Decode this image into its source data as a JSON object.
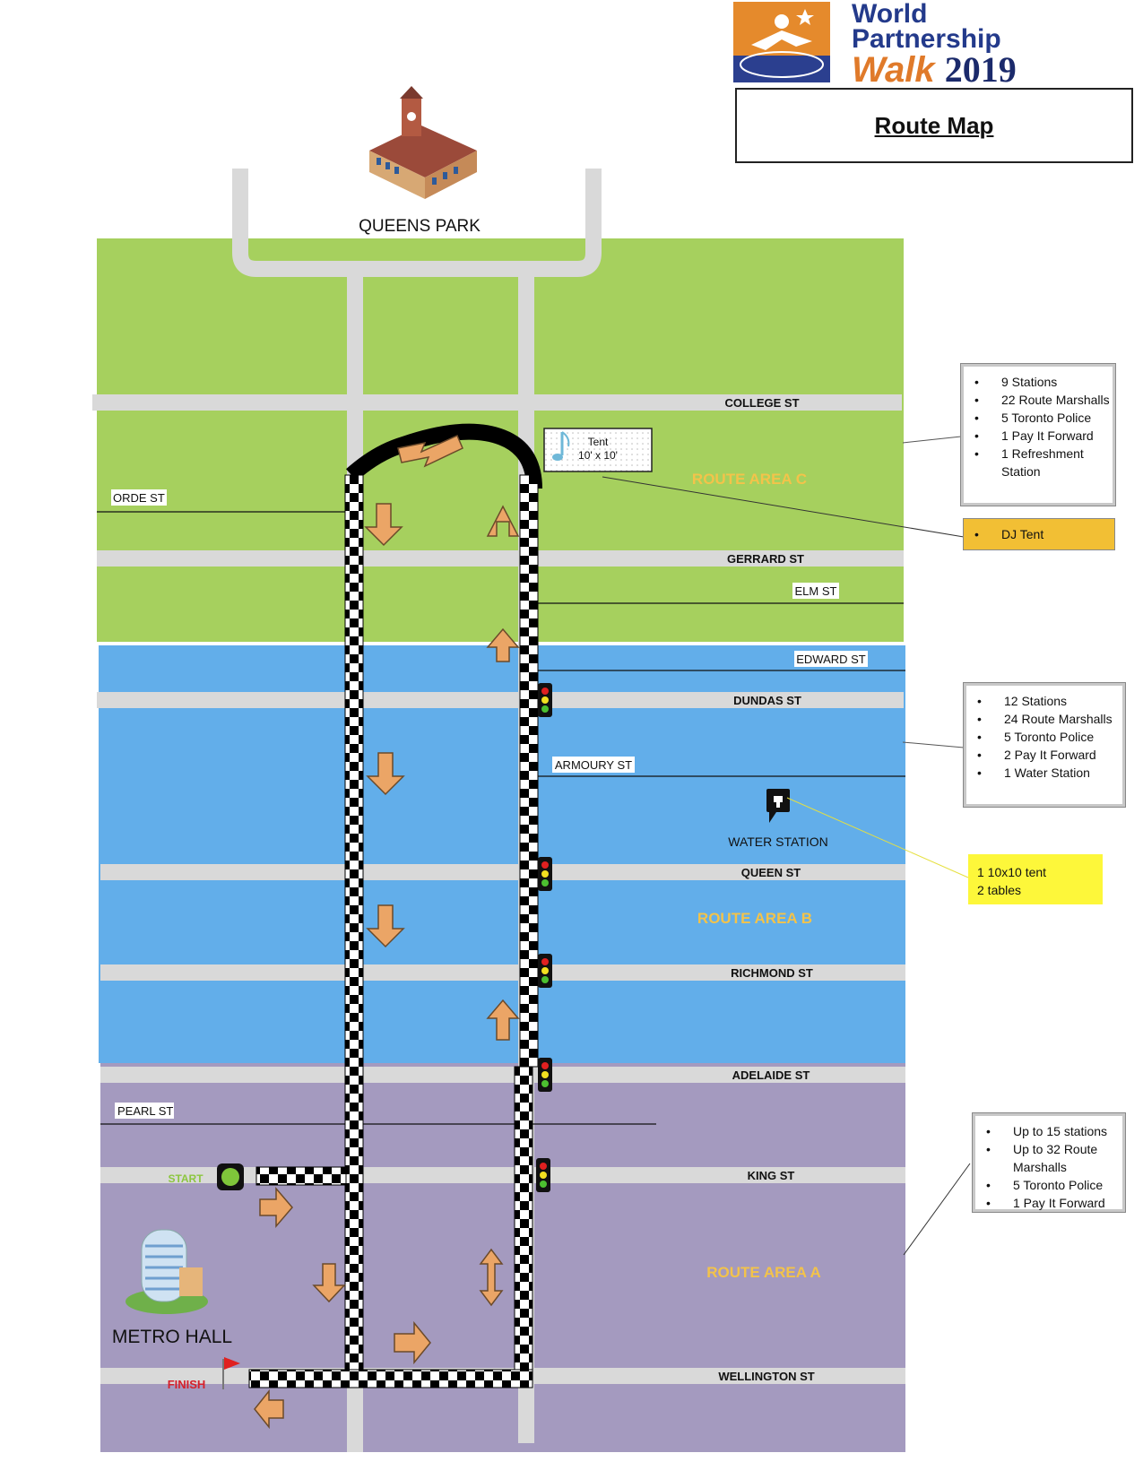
{
  "logo": {
    "line1": "World",
    "line2": "Partnership",
    "line3_walk": "Walk",
    "line3_year": "2019"
  },
  "title": "Route Map",
  "landmarks": {
    "queens_park": "QUEENS PARK",
    "metro_hall": "METRO HALL",
    "water_station": "WATER STATION"
  },
  "streets": {
    "college": "COLLEGE ST",
    "orde": "ORDE ST",
    "gerrard": "GERRARD ST",
    "elm": "ELM ST",
    "edward": "EDWARD ST",
    "dundas": "DUNDAS ST",
    "armoury": "ARMOURY ST",
    "queen": "QUEEN ST",
    "richmond": "RICHMOND ST",
    "adelaide": "ADELAIDE ST",
    "pearl": "PEARL ST",
    "king": "KING ST",
    "wellington": "WELLINGTON ST"
  },
  "areas": {
    "c": "ROUTE AREA C",
    "b": "ROUTE AREA B",
    "a": "ROUTE AREA A"
  },
  "tent": {
    "line1": "Tent",
    "line2": "10' x 10'"
  },
  "markers": {
    "start": "START",
    "finish": "FINISH"
  },
  "panels": {
    "area_c": [
      "9 Stations",
      "22 Route Marshalls",
      "5 Toronto Police",
      "1 Pay It Forward",
      "1 Refreshment Station"
    ],
    "dj": [
      "DJ Tent"
    ],
    "area_b": [
      "12 Stations",
      "24 Route Marshalls",
      "5 Toronto Police",
      "2 Pay It Forward",
      "1 Water Station"
    ],
    "water_note": [
      "1 10x10 tent",
      "2 tables"
    ],
    "area_a": [
      "Up to 15 stations",
      "Up to 32 Route Marshalls",
      "5 Toronto Police",
      "1 Pay It Forward"
    ]
  },
  "colors": {
    "area_c": "#a6d05e",
    "area_b": "#62aeea",
    "area_a": "#a49abf",
    "road": "#d9d9d9",
    "area_label": "#f3c34a",
    "arrow": "#eba566",
    "dj_box": "#f2bf34",
    "water_box": "#fdf73a"
  }
}
